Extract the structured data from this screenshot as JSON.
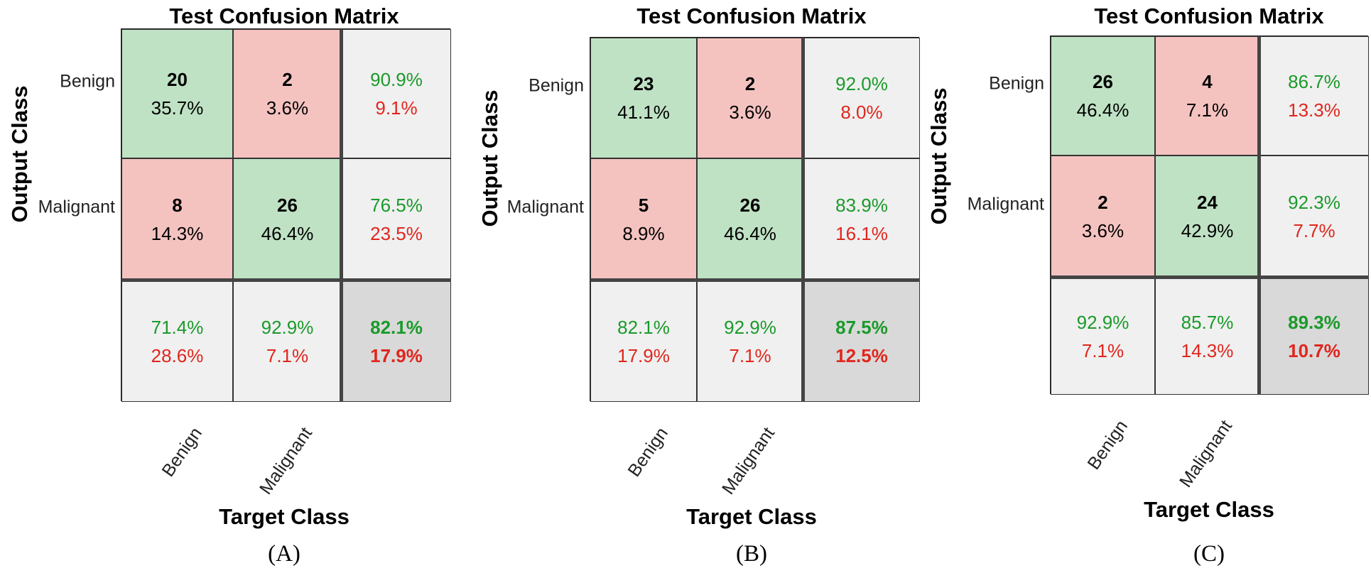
{
  "chart_data": [
    {
      "type": "table",
      "caption": "(A)",
      "title": "Test Confusion Matrix",
      "ylabel": "Output Class",
      "xlabel": "Target Class",
      "row_labels": [
        "Benign",
        "Malignant"
      ],
      "col_labels": [
        "Benign",
        "Malignant"
      ],
      "counts": [
        [
          20,
          2
        ],
        [
          8,
          26
        ]
      ],
      "cell_pct": [
        [
          "35.7%",
          "3.6%"
        ],
        [
          "14.3%",
          "46.4%"
        ]
      ],
      "row_summary": [
        [
          "90.9%",
          "9.1%"
        ],
        [
          "76.5%",
          "23.5%"
        ]
      ],
      "col_summary": [
        [
          "71.4%",
          "28.6%"
        ],
        [
          "92.9%",
          "7.1%"
        ]
      ],
      "overall": [
        "82.1%",
        "17.9%"
      ]
    },
    {
      "type": "table",
      "caption": "(B)",
      "title": "Test Confusion Matrix",
      "ylabel": "Output Class",
      "xlabel": "Target Class",
      "row_labels": [
        "Benign",
        "Malignant"
      ],
      "col_labels": [
        "Benign",
        "Malignant"
      ],
      "counts": [
        [
          23,
          2
        ],
        [
          5,
          26
        ]
      ],
      "cell_pct": [
        [
          "41.1%",
          "3.6%"
        ],
        [
          "8.9%",
          "46.4%"
        ]
      ],
      "row_summary": [
        [
          "92.0%",
          "8.0%"
        ],
        [
          "83.9%",
          "16.1%"
        ]
      ],
      "col_summary": [
        [
          "82.1%",
          "17.9%"
        ],
        [
          "92.9%",
          "7.1%"
        ]
      ],
      "overall": [
        "87.5%",
        "12.5%"
      ]
    },
    {
      "type": "table",
      "caption": "(C)",
      "title": "Test Confusion Matrix",
      "ylabel": "Output Class",
      "xlabel": "Target Class",
      "row_labels": [
        "Benign",
        "Malignant"
      ],
      "col_labels": [
        "Benign",
        "Malignant"
      ],
      "counts": [
        [
          26,
          4
        ],
        [
          2,
          24
        ]
      ],
      "cell_pct": [
        [
          "46.4%",
          "7.1%"
        ],
        [
          "3.6%",
          "42.9%"
        ]
      ],
      "row_summary": [
        [
          "86.7%",
          "13.3%"
        ],
        [
          "92.3%",
          "7.7%"
        ]
      ],
      "col_summary": [
        [
          "92.9%",
          "7.1%"
        ],
        [
          "85.7%",
          "14.3%"
        ]
      ],
      "overall": [
        "89.3%",
        "10.7%"
      ]
    }
  ],
  "colors": {
    "correct_cell": "#bfe2c4",
    "error_cell": "#f4c3c0",
    "summary_cell": "#f0f0f0",
    "total_cell": "#d9d9d9",
    "good_text": "#1a9a2a",
    "bad_text": "#e0261d"
  }
}
